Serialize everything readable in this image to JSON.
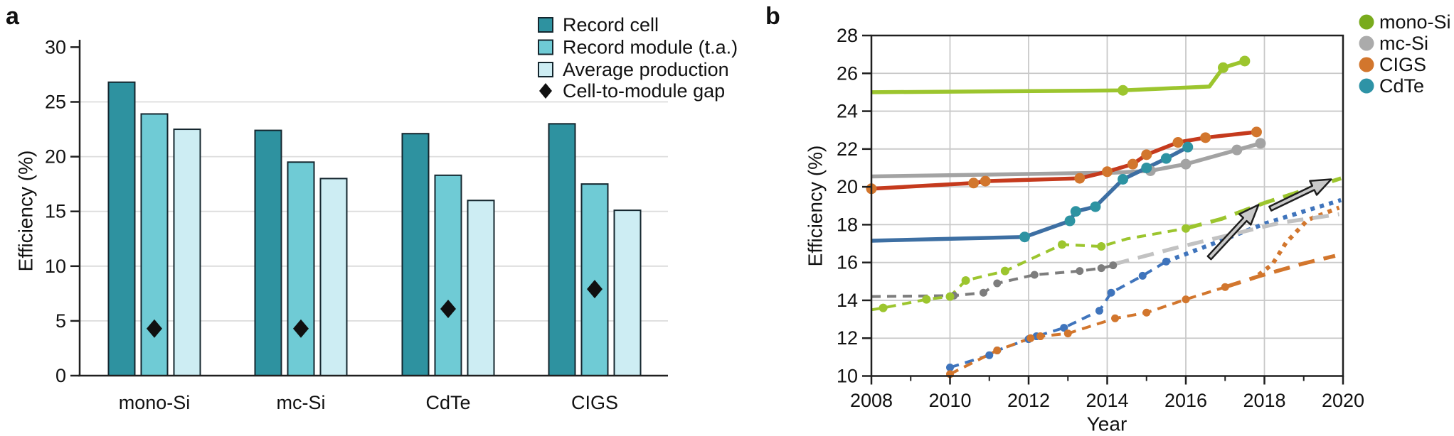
{
  "panel_a": {
    "label": "a",
    "legend": [
      {
        "type": "square",
        "color": "#2E92A0",
        "label": "Record cell"
      },
      {
        "type": "square",
        "color": "#6FCBD5",
        "label": "Record module (t.a.)"
      },
      {
        "type": "square",
        "color": "#CDEDF3",
        "label": "Average production"
      },
      {
        "type": "diamond",
        "color": "#101010",
        "label": "Cell-to-module gap"
      }
    ],
    "chart_data": {
      "type": "bar",
      "categories": [
        "mono-Si",
        "mc-Si",
        "CdTe",
        "CIGS"
      ],
      "series": [
        {
          "name": "Record cell",
          "color": "#2E92A0",
          "values": [
            26.8,
            22.4,
            22.1,
            23.0
          ]
        },
        {
          "name": "Record module (t.a.)",
          "color": "#6FCBD5",
          "values": [
            23.9,
            19.5,
            18.3,
            17.5
          ]
        },
        {
          "name": "Average production",
          "color": "#CDEDF3",
          "values": [
            22.5,
            18.0,
            16.0,
            15.1
          ]
        }
      ],
      "gap_series": {
        "name": "Cell-to-module gap",
        "marker": "diamond",
        "color": "#101010",
        "values": [
          4.3,
          4.3,
          6.1,
          7.9
        ]
      },
      "ylabel": "Efficiency (%)",
      "ylim": [
        0,
        30
      ],
      "yticks": [
        0,
        5,
        10,
        15,
        20,
        25,
        30
      ],
      "grid_values": [
        5,
        10,
        15,
        20,
        25
      ],
      "bar_edge_color": "#14262e"
    }
  },
  "panel_b": {
    "label": "b",
    "legend": [
      {
        "type": "circle",
        "color": "#79AB1D",
        "label": "mono-Si"
      },
      {
        "type": "circle",
        "color": "#ABABAB",
        "label": "mc-Si"
      },
      {
        "type": "circle",
        "color": "#D2762D",
        "label": "CIGS"
      },
      {
        "type": "circle",
        "color": "#2E93A6",
        "label": "CdTe"
      }
    ],
    "chart_data": {
      "type": "line",
      "xlabel": "Year",
      "ylabel": "Efficiency (%)",
      "xlim": [
        2008,
        2020
      ],
      "ylim": [
        10,
        28
      ],
      "xticks": [
        2008,
        2010,
        2012,
        2014,
        2016,
        2018,
        2020
      ],
      "minor_xticks": [
        2009,
        2011,
        2013,
        2015,
        2017,
        2019
      ],
      "yticks": [
        10,
        12,
        14,
        16,
        18,
        20,
        22,
        24,
        26,
        28
      ],
      "grid_x": [
        2010,
        2012,
        2014,
        2016,
        2018
      ],
      "grid_y": [
        12,
        14,
        16,
        18,
        20,
        22,
        24,
        26
      ],
      "series": [
        {
          "id": "cdte-average-production",
          "tech": "CdTe",
          "kind": "average production",
          "style": "dash",
          "color": "#3F74BC",
          "width": 4,
          "marker_r": 5.5,
          "markers": "all",
          "points": [
            [
              2010,
              10.45
            ],
            [
              2011,
              11.1
            ],
            [
              2011.2,
              11.35
            ],
            [
              2012,
              11.95
            ],
            [
              2012.2,
              12.1
            ],
            [
              2012.9,
              12.55
            ],
            [
              2013.8,
              13.45
            ],
            [
              2014.1,
              14.4
            ],
            [
              2014.9,
              15.3
            ],
            [
              2015.5,
              16.05
            ]
          ]
        },
        {
          "id": "cdte-projection",
          "tech": "CdTe",
          "kind": "projected average production",
          "style": "dot",
          "color": "#3F74BC",
          "width": 6,
          "points": [
            [
              2015.5,
              16.05
            ],
            [
              2016.7,
              17.0
            ],
            [
              2018.0,
              18.05
            ],
            [
              2019.0,
              18.7
            ],
            [
              2019.95,
              19.3
            ]
          ]
        },
        {
          "id": "cigs-average-production",
          "tech": "CIGS",
          "kind": "average production",
          "style": "dash",
          "color": "#D2762D",
          "width": 4,
          "marker_r": 5.5,
          "markers": "all",
          "points": [
            [
              2010,
              10.1
            ],
            [
              2011.2,
              11.35
            ],
            [
              2012.05,
              12.0
            ],
            [
              2012.3,
              12.1
            ],
            [
              2013.0,
              12.25
            ],
            [
              2014.2,
              13.05
            ],
            [
              2015.0,
              13.35
            ],
            [
              2016.0,
              14.05
            ],
            [
              2017.0,
              14.7
            ]
          ]
        },
        {
          "id": "cigs-projection-low",
          "tech": "CIGS",
          "kind": "projected average production (low)",
          "style": "longdash",
          "color": "#D2762D",
          "width": 5.5,
          "points": [
            [
              2017.0,
              14.7
            ],
            [
              2017.45,
              15.0
            ],
            [
              2017.9,
              15.3
            ],
            [
              2019.0,
              15.95
            ],
            [
              2019.8,
              16.35
            ]
          ]
        },
        {
          "id": "cigs-projection-high",
          "tech": "CIGS",
          "kind": "projected average production (high)",
          "style": "dot",
          "color": "#D2762D",
          "width": 6,
          "points": [
            [
              2017.85,
              15.35
            ],
            [
              2018.2,
              15.9
            ],
            [
              2018.55,
              17.05
            ],
            [
              2019.1,
              18.25
            ],
            [
              2019.9,
              18.9
            ]
          ]
        },
        {
          "id": "mc-si-average-production",
          "tech": "mc-Si",
          "kind": "average production",
          "style": "dash",
          "color": "#7D7D7D",
          "width": 4,
          "marker_r": 5.5,
          "points": [
            [
              2008,
              14.2
            ],
            [
              2010.1,
              14.25
            ],
            [
              2010.85,
              14.4
            ],
            [
              2011.2,
              14.9
            ],
            [
              2012.15,
              15.35
            ],
            [
              2013.3,
              15.55
            ],
            [
              2013.85,
              15.7
            ],
            [
              2014.15,
              15.85
            ]
          ],
          "marker_points": [
            [
              2010.1,
              14.25
            ],
            [
              2010.85,
              14.4
            ],
            [
              2011.2,
              14.9
            ],
            [
              2012.15,
              15.35
            ],
            [
              2013.3,
              15.55
            ],
            [
              2013.85,
              15.7
            ],
            [
              2014.15,
              15.85
            ]
          ]
        },
        {
          "id": "mc-si-projection",
          "tech": "mc-Si",
          "kind": "projected average production",
          "style": "longdash",
          "color": "#C2C2C2",
          "width": 5.5,
          "points": [
            [
              2014.15,
              15.9
            ],
            [
              2015.7,
              16.75
            ],
            [
              2017.6,
              17.7
            ],
            [
              2018.4,
              18.1
            ],
            [
              2019.9,
              18.55
            ]
          ]
        },
        {
          "id": "mono-si-average-production",
          "tech": "mono-Si",
          "kind": "average production",
          "style": "dash",
          "color": "#9CC52E",
          "width": 4,
          "marker_r": 6,
          "points": [
            [
              2008,
              13.5
            ],
            [
              2008.3,
              13.6
            ],
            [
              2009.4,
              14.05
            ],
            [
              2010.0,
              14.2
            ],
            [
              2010.4,
              15.05
            ],
            [
              2011.4,
              15.55
            ],
            [
              2012.85,
              16.95
            ],
            [
              2013.85,
              16.85
            ],
            [
              2014.5,
              17.25
            ],
            [
              2016.0,
              17.8
            ]
          ],
          "marker_points": [
            [
              2008.3,
              13.6
            ],
            [
              2009.4,
              14.05
            ],
            [
              2010.0,
              14.2
            ],
            [
              2010.4,
              15.05
            ],
            [
              2011.4,
              15.55
            ],
            [
              2012.85,
              16.95
            ],
            [
              2013.85,
              16.85
            ],
            [
              2016.0,
              17.8
            ]
          ]
        },
        {
          "id": "mono-si-projection",
          "tech": "mono-Si",
          "kind": "projected average production",
          "style": "longdash",
          "color": "#9CC52E",
          "width": 5.5,
          "points": [
            [
              2016.0,
              17.8
            ],
            [
              2016.9,
              18.3
            ],
            [
              2018.0,
              19.15
            ],
            [
              2019.95,
              20.45
            ]
          ]
        },
        {
          "id": "mc-si-record-cell",
          "tech": "mc-Si",
          "kind": "record cell",
          "style": "solid",
          "color": "#A3A3A3",
          "width": 5.5,
          "marker_r": 7.5,
          "points": [
            [
              2008,
              20.55
            ],
            [
              2014.2,
              20.75
            ],
            [
              2015.1,
              20.85
            ],
            [
              2016.0,
              21.2
            ],
            [
              2017.3,
              21.95
            ],
            [
              2017.9,
              22.3
            ]
          ],
          "marker_points": [
            [
              2015.1,
              20.85
            ],
            [
              2016.0,
              21.2
            ],
            [
              2017.3,
              21.95
            ],
            [
              2017.9,
              22.3
            ]
          ]
        },
        {
          "id": "cdte-record-cell",
          "tech": "CdTe",
          "kind": "record cell",
          "style": "solid",
          "color": "#3D6FA3",
          "width": 5.5,
          "marker_color": "#2D93A2",
          "marker_r": 7.5,
          "points": [
            [
              2008,
              17.15
            ],
            [
              2011.9,
              17.35
            ],
            [
              2013.05,
              18.2
            ],
            [
              2013.2,
              18.7
            ],
            [
              2013.7,
              18.95
            ],
            [
              2014.4,
              20.4
            ],
            [
              2015.0,
              21.0
            ],
            [
              2015.5,
              21.5
            ],
            [
              2016.05,
              22.1
            ]
          ],
          "marker_points": [
            [
              2011.9,
              17.35
            ],
            [
              2013.05,
              18.2
            ],
            [
              2013.2,
              18.7
            ],
            [
              2013.7,
              18.95
            ],
            [
              2014.4,
              20.4
            ],
            [
              2015.0,
              21.0
            ],
            [
              2015.5,
              21.5
            ],
            [
              2016.05,
              22.1
            ]
          ]
        },
        {
          "id": "cigs-record-cell",
          "tech": "CIGS",
          "kind": "record cell",
          "style": "solid",
          "color": "#C53A1D",
          "width": 5.5,
          "marker_color": "#D2762D",
          "marker_r": 7.5,
          "markers": "all",
          "points": [
            [
              2008,
              19.9
            ],
            [
              2010.6,
              20.2
            ],
            [
              2010.9,
              20.3
            ],
            [
              2013.3,
              20.45
            ],
            [
              2014.0,
              20.8
            ],
            [
              2014.65,
              21.2
            ],
            [
              2015.0,
              21.7
            ],
            [
              2015.8,
              22.35
            ],
            [
              2016.5,
              22.6
            ],
            [
              2017.8,
              22.9
            ]
          ]
        },
        {
          "id": "mono-si-record-cell",
          "tech": "mono-Si",
          "kind": "record cell",
          "style": "solid",
          "color": "#9CC52E",
          "width": 5.5,
          "marker_r": 7.5,
          "points": [
            [
              2008,
              25.0
            ],
            [
              2014.4,
              25.1
            ],
            [
              2016.6,
              25.3
            ],
            [
              2016.95,
              26.3
            ],
            [
              2017.5,
              26.65
            ]
          ],
          "marker_points": [
            [
              2014.4,
              25.1
            ],
            [
              2016.95,
              26.3
            ],
            [
              2017.5,
              26.65
            ]
          ]
        }
      ],
      "arrows": [
        {
          "from": [
            2016.6,
            16.25
          ],
          "to": [
            2017.85,
            19.05
          ]
        },
        {
          "from": [
            2018.15,
            18.85
          ],
          "to": [
            2019.7,
            20.4
          ]
        }
      ],
      "arrow_fill": "#C9C9C9",
      "arrow_stroke": "#1e1e1e"
    }
  }
}
